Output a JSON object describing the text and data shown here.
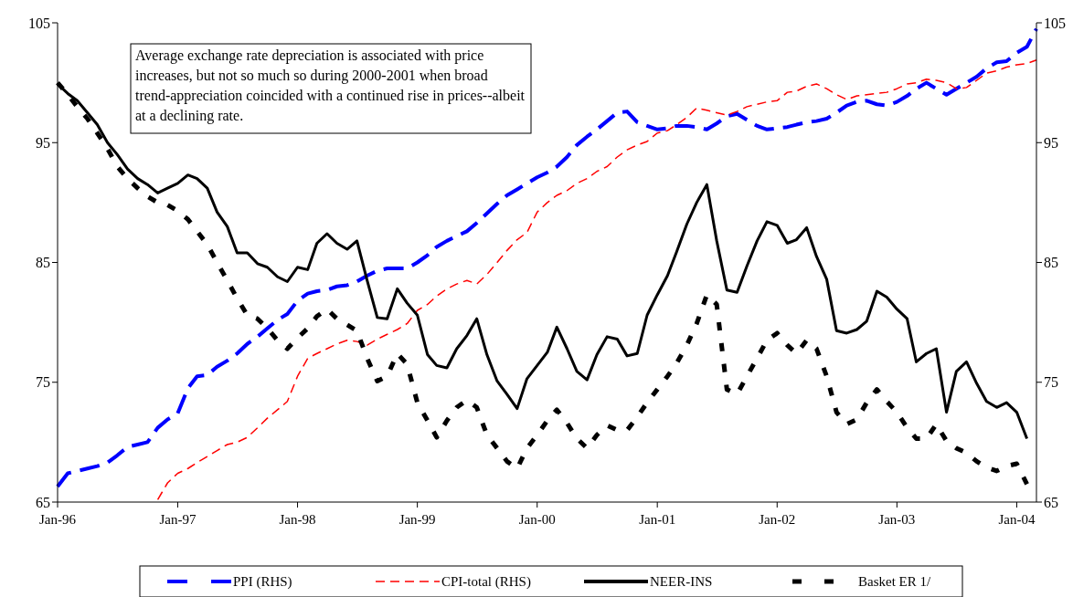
{
  "chart_data": {
    "type": "line",
    "x": [
      "1996-01",
      "1996-02",
      "1996-03",
      "1996-04",
      "1996-05",
      "1996-06",
      "1996-07",
      "1996-08",
      "1996-09",
      "1996-10",
      "1996-11",
      "1996-12",
      "1997-01",
      "1997-02",
      "1997-03",
      "1997-04",
      "1997-05",
      "1997-06",
      "1997-07",
      "1997-08",
      "1997-09",
      "1997-10",
      "1997-11",
      "1997-12",
      "1998-01",
      "1998-02",
      "1998-03",
      "1998-04",
      "1998-05",
      "1998-06",
      "1998-07",
      "1998-08",
      "1998-09",
      "1998-10",
      "1998-11",
      "1998-12",
      "1999-01",
      "1999-02",
      "1999-03",
      "1999-04",
      "1999-05",
      "1999-06",
      "1999-07",
      "1999-08",
      "1999-09",
      "1999-10",
      "1999-11",
      "1999-12",
      "2000-01",
      "2000-02",
      "2000-03",
      "2000-04",
      "2000-05",
      "2000-06",
      "2000-07",
      "2000-08",
      "2000-09",
      "2000-10",
      "2000-11",
      "2000-12",
      "2001-01",
      "2001-02",
      "2001-03",
      "2001-04",
      "2001-05",
      "2001-06",
      "2001-07",
      "2001-08",
      "2001-09",
      "2001-10",
      "2001-11",
      "2001-12",
      "2002-01",
      "2002-02",
      "2002-03",
      "2002-04",
      "2002-05",
      "2002-06",
      "2002-07",
      "2002-08",
      "2002-09",
      "2002-10",
      "2002-11",
      "2002-12",
      "2003-01",
      "2003-02",
      "2003-03",
      "2003-04",
      "2003-05",
      "2003-06",
      "2003-07",
      "2003-08",
      "2003-09",
      "2003-10",
      "2003-11",
      "2003-12",
      "2004-01",
      "2004-02",
      "2004-03"
    ],
    "series": [
      {
        "name": "PPI (RHS)",
        "color": "#0000ff",
        "axis": "y2",
        "line_style": "dashed",
        "values": [
          66.3,
          67.4,
          67.6,
          67.8,
          68,
          68.3,
          68.9,
          69.6,
          69.8,
          70,
          71.2,
          71.9,
          72.4,
          74.5,
          75.5,
          75.6,
          76.3,
          76.8,
          77.4,
          78.2,
          78.8,
          79.5,
          80.2,
          80.7,
          81.8,
          82.4,
          82.6,
          82.7,
          83,
          83.1,
          83.4,
          83.9,
          84.3,
          84.5,
          84.5,
          84.5,
          85,
          85.6,
          86.3,
          86.8,
          87.2,
          87.6,
          88.3,
          89.1,
          89.9,
          90.6,
          91.1,
          91.6,
          92.1,
          92.5,
          93,
          93.8,
          94.8,
          95.5,
          96.1,
          96.8,
          97.5,
          97.6,
          96.7,
          96.4,
          96.1,
          96.2,
          96.4,
          96.4,
          96.3,
          96.1,
          96.6,
          97.2,
          97.4,
          96.9,
          96.4,
          96.1,
          96.2,
          96.3,
          96.5,
          96.7,
          96.8,
          97,
          97.5,
          98.1,
          98.4,
          98.5,
          98.2,
          98.1,
          98.4,
          98.9,
          99.5,
          100,
          99.5,
          99,
          99.5,
          100,
          100.5,
          101.2,
          101.7,
          101.8,
          102.5,
          103,
          104.5
        ]
      },
      {
        "name": "CPI-total (RHS)",
        "color": "#ff0000",
        "axis": "y2",
        "line_style": "dashed",
        "values": [
          null,
          null,
          null,
          null,
          null,
          null,
          null,
          null,
          null,
          null,
          65.2,
          66.6,
          67.4,
          67.8,
          68.3,
          68.8,
          69.3,
          69.8,
          70,
          70.4,
          71.2,
          72,
          72.7,
          73.4,
          75.5,
          77,
          77.4,
          77.8,
          78.2,
          78.5,
          78.4,
          78.1,
          78.6,
          79,
          79.4,
          79.9,
          81,
          81.5,
          82.2,
          82.8,
          83.2,
          83.5,
          83.2,
          84,
          85,
          86,
          86.9,
          87.5,
          89.2,
          90,
          90.6,
          91,
          91.6,
          92,
          92.6,
          93,
          93.8,
          94.4,
          94.8,
          95.1,
          95.8,
          96,
          96.5,
          97.1,
          97.9,
          97.7,
          97.5,
          97.3,
          97.6,
          98,
          98.2,
          98.4,
          98.5,
          99.2,
          99.3,
          99.7,
          99.9,
          99.5,
          99,
          98.6,
          98.9,
          99,
          99.1,
          99.2,
          99.5,
          99.9,
          100,
          100.3,
          100.2,
          100,
          99.5,
          99.6,
          100.2,
          100.8,
          101,
          101.3,
          101.5,
          101.6,
          101.9
        ]
      },
      {
        "name": "NEER-INS",
        "color": "#000000",
        "line_style": "solid",
        "values": [
          99.9,
          99.1,
          98.5,
          97.5,
          96.5,
          95,
          94,
          92.8,
          92,
          91.5,
          90.8,
          91.2,
          91.6,
          92.3,
          92,
          91.2,
          89.2,
          88,
          85.8,
          85.8,
          84.9,
          84.6,
          83.8,
          83.4,
          84.6,
          84.4,
          86.6,
          87.4,
          86.6,
          86.1,
          86.8,
          83.5,
          80.4,
          80.3,
          82.8,
          81.6,
          80.6,
          77.3,
          76.4,
          76.2,
          77.8,
          78.9,
          80.3,
          77.3,
          75.1,
          74,
          72.8,
          75.3,
          76.4,
          77.5,
          79.6,
          77.8,
          75.9,
          75.2,
          77.3,
          78.8,
          78.6,
          77.2,
          77.4,
          80.6,
          82.3,
          83.9,
          85.9,
          88.2,
          90,
          91.5,
          86.8,
          82.7,
          82.5,
          84.7,
          86.8,
          88.4,
          88.1,
          86.6,
          86.9,
          87.9,
          85.5,
          83.6,
          79.3,
          79.1,
          79.4,
          80.1,
          82.6,
          82.1,
          81.1,
          80.3,
          76.7,
          77.4,
          77.8,
          72.5,
          75.9,
          76.7,
          74.9,
          73.4,
          72.9,
          73.3,
          72.5,
          70.3,
          null
        ]
      },
      {
        "name": "Basket ER  1/",
        "color": "#000000",
        "line_style": "dotted",
        "values": [
          100,
          99,
          98,
          97,
          95.8,
          94.5,
          93,
          92,
          91.2,
          90.5,
          90,
          89.8,
          89.3,
          88.6,
          87.6,
          86.5,
          85,
          83.5,
          82,
          80.6,
          80.3,
          79.5,
          78.5,
          77.8,
          78.7,
          79.5,
          80.5,
          81.1,
          80.3,
          79.8,
          79.3,
          77,
          75.1,
          75.5,
          77.4,
          76.5,
          73.3,
          71.8,
          70.4,
          71.8,
          72.9,
          73.5,
          72.9,
          70.6,
          69.5,
          68.4,
          67.8,
          69.5,
          70.6,
          71.8,
          72.7,
          71.6,
          70.3,
          69.5,
          70.6,
          71.4,
          71,
          71,
          72.1,
          73.3,
          74.4,
          75.5,
          76.6,
          78.1,
          79.9,
          82.3,
          81.5,
          74.4,
          74,
          75.5,
          77,
          78.5,
          79.1,
          78.1,
          77.4,
          78.5,
          77.8,
          75.5,
          72.5,
          71.5,
          71.9,
          73.3,
          74.4,
          73.4,
          72.5,
          71.2,
          70.3,
          70.3,
          71.5,
          70.1,
          69.5,
          69.1,
          68.4,
          67.9,
          67.6,
          68,
          68.2,
          66.5,
          null
        ]
      }
    ],
    "xlim": [
      "1996-01",
      "2004-03"
    ],
    "xticks": [
      {
        "value": "1996-01",
        "label": "Jan-96"
      },
      {
        "value": "1997-01",
        "label": "Jan-97"
      },
      {
        "value": "1998-01",
        "label": "Jan-98"
      },
      {
        "value": "1999-01",
        "label": "Jan-99"
      },
      {
        "value": "2000-01",
        "label": "Jan-00"
      },
      {
        "value": "2001-01",
        "label": "Jan-01"
      },
      {
        "value": "2002-01",
        "label": "Jan-02"
      },
      {
        "value": "2003-01",
        "label": "Jan-03"
      },
      {
        "value": "2004-01",
        "label": "Jan-04"
      }
    ],
    "ylim": [
      65,
      105
    ],
    "yticks": [
      65,
      75,
      85,
      95,
      105
    ],
    "y2lim": [
      65,
      105
    ],
    "y2ticks": [
      65,
      75,
      85,
      95,
      105
    ],
    "annotations": [
      "Average exchange rate depreciation is associated with price increases, but not so much so during 2000-2001 when broad trend-appreciation coincided with a continued rise in prices--albeit at a declining rate."
    ],
    "legend": "bottom",
    "grid": false
  }
}
